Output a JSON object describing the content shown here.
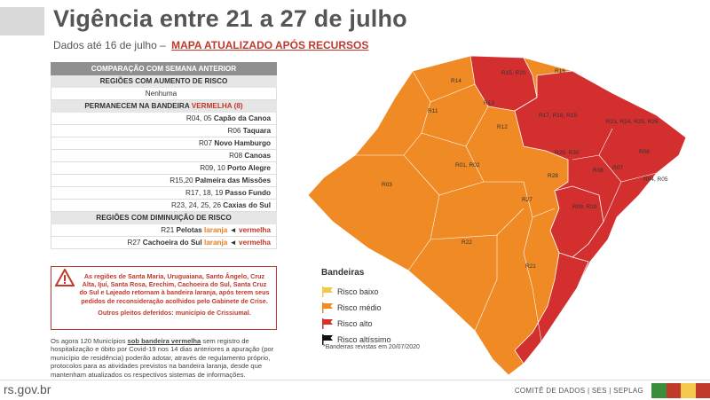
{
  "header": {
    "title": "Vigência entre 21 a 27 de julho",
    "subtitle_prefix": "Dados até 16 de julho –",
    "subtitle_highlight": "MAPA ATUALIZADO APÓS RECURSOS"
  },
  "table": {
    "header": "COMPARAÇÃO COM SEMANA ANTERIOR",
    "increase": {
      "title": "REGIÕES COM AUMENTO DE RISCO",
      "rows": [
        "Nenhuma"
      ]
    },
    "remain": {
      "title_prefix": "PERMANECEM NA BANDEIRA",
      "title_flag": "VERMELHA (8)",
      "rows": [
        {
          "code": "R04, 05",
          "name": "Capão da Canoa"
        },
        {
          "code": "R06",
          "name": "Taquara"
        },
        {
          "code": "R07",
          "name": "Novo Hamburgo"
        },
        {
          "code": "R08",
          "name": "Canoas"
        },
        {
          "code": "R09, 10",
          "name": "Porto Alegre"
        },
        {
          "code": "R15,20",
          "name": "Palmeira das Missões"
        },
        {
          "code": "R17, 18, 19",
          "name": "Passo Fundo"
        },
        {
          "code": "R23, 24, 25, 26",
          "name": "Caxias do Sul"
        }
      ]
    },
    "decrease": {
      "title": "REGIÕES COM DIMINUIÇÃO DE RISCO",
      "rows": [
        {
          "code": "R21",
          "name": "Pelotas",
          "from": "laranja",
          "arrow": "◄",
          "to": "vermelha"
        },
        {
          "code": "R27",
          "name": "Cachoeira do Sul",
          "from": "laranja",
          "arrow": "◄",
          "to": "vermelha"
        }
      ]
    }
  },
  "alert": {
    "text": "As regiões de Santa Maria, Uruguaiana, Santo Ângelo, Cruz Alta, Ijuí, Santa Rosa, Erechim, Cachoeira do Sul, Santa Cruz do Sul e Lajeado retornam à bandeira laranja, após terem seus pedidos de reconsideração acolhidos pelo Gabinete de Crise.",
    "other": "Outros pleitos deferidos: município de Crissiumal."
  },
  "note": {
    "prefix": "Os agora 120 Municípios",
    "bold": "sob bandeira vermelha",
    "suffix": "sem registro de hospitalização e óbito por Covid-19 nos 14 dias anteriores a apuração (por município de residência) poderão adotar, através de regulamento próprio, protocolos para as atividades previstos na bandeira laranja, desde que mantenham atualizados os respectivos sistemas de informações."
  },
  "legend": {
    "title": "Bandeiras",
    "items": [
      {
        "label": "Risco baixo",
        "color": "#f2c94c"
      },
      {
        "label": "Risco médio",
        "color": "#f08a24"
      },
      {
        "label": "Risco alto",
        "color": "#d32f2f"
      },
      {
        "label": "Risco altíssimo",
        "color": "#111111"
      }
    ],
    "note": "*Bandeiras revistas em 20/07/2020"
  },
  "map_labels": {
    "r15r20": "R15, R20",
    "r16": "R16",
    "r14": "R14",
    "r13": "R13",
    "r11": "R11",
    "r17": "R17, R18, R19",
    "r23": "R23, R24, R25, R26",
    "r12": "R12",
    "r29": "R29, R30",
    "r06": "R06",
    "r07": "R07",
    "r08": "R08",
    "r01": "R01, R02",
    "r04": "R04, R05",
    "r28": "R28",
    "r09": "R09, R10",
    "r03": "R03",
    "r27": "R27",
    "r22": "R22",
    "r21": "R21"
  },
  "footer": {
    "site": "rs.gov.br",
    "credits": "COMITÊ DE DADOS  |  SES  |  SEPLAG",
    "strip_colors": [
      "#3a8d3a",
      "#c0392b",
      "#f2c94c",
      "#c0392b"
    ]
  }
}
